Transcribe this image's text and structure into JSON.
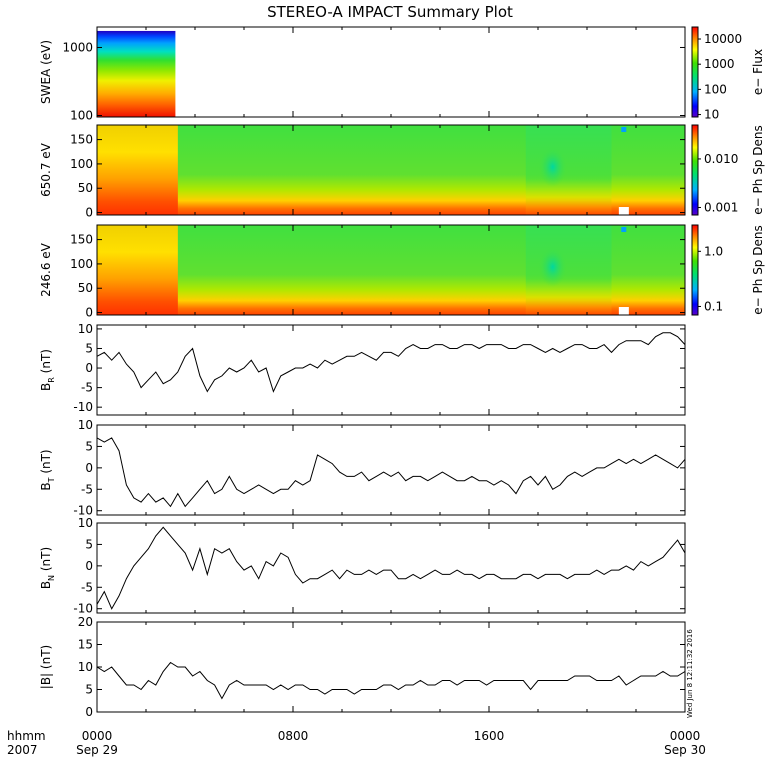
{
  "title": "STEREO-A IMPACT Summary Plot",
  "stamp": "Wed Jun  8 12:11:32 2016",
  "time_axis": {
    "row1_label": "hhmm",
    "row2_label": "2007",
    "ticks": [
      {
        "hour": 0,
        "hhmm": "0000",
        "date": "Sep 29"
      },
      {
        "hour": 8,
        "hhmm": "0800",
        "date": ""
      },
      {
        "hour": 16,
        "hhmm": "1600",
        "date": ""
      },
      {
        "hour": 24,
        "hhmm": "0000",
        "date": "Sep 30"
      }
    ]
  },
  "colors": {
    "line": "#000000",
    "frame": "#000000",
    "background": "#ffffff"
  },
  "chart_data": [
    {
      "type": "heatmap",
      "name": "swea",
      "ylabel": "SWEA (eV)",
      "yscale": "log",
      "ylim": [
        95,
        2000
      ],
      "yticks": [
        100,
        1000
      ],
      "ytick_labels": [
        "100",
        "1000"
      ],
      "data_end_hour": 3.2,
      "colorbar": {
        "label": "e− Flux",
        "scale": "log",
        "range": [
          8,
          30000
        ],
        "ticks": [
          10,
          100,
          1000,
          10000
        ],
        "tick_labels": [
          "10",
          "100",
          "1000",
          "10000"
        ]
      }
    },
    {
      "type": "heatmap",
      "name": "pad-650",
      "ylabel": "650.7 eV",
      "ylim": [
        -5,
        180
      ],
      "yticks": [
        0,
        50,
        100,
        150
      ],
      "colorbar": {
        "label": "e− Ph Sp Dens",
        "scale": "log",
        "range": [
          0.0007,
          0.05
        ],
        "ticks": [
          0.001,
          0.01
        ],
        "tick_labels": [
          "0.001",
          "0.010"
        ]
      }
    },
    {
      "type": "heatmap",
      "name": "pad-246",
      "ylabel": "246.6 eV",
      "ylim": [
        -5,
        180
      ],
      "yticks": [
        0,
        50,
        100,
        150
      ],
      "colorbar": {
        "label": "e− Ph Sp Dens",
        "scale": "log",
        "range": [
          0.07,
          3
        ],
        "ticks": [
          0.1,
          1
        ],
        "tick_labels": [
          "0.1",
          "1.0"
        ]
      }
    },
    {
      "type": "line",
      "name": "br",
      "ylabel_main": "B",
      "ylabel_sub": "R",
      "ylabel_unit": " (nT)",
      "ylim": [
        -12,
        11
      ],
      "yticks": [
        -10,
        -5,
        0,
        5,
        10
      ],
      "x": [
        0,
        0.3,
        0.6,
        0.9,
        1.2,
        1.5,
        1.8,
        2.1,
        2.4,
        2.7,
        3.0,
        3.3,
        3.6,
        3.9,
        4.2,
        4.5,
        4.8,
        5.1,
        5.4,
        5.7,
        6.0,
        6.3,
        6.6,
        6.9,
        7.2,
        7.5,
        7.8,
        8.1,
        8.4,
        8.7,
        9.0,
        9.3,
        9.6,
        9.9,
        10.2,
        10.5,
        10.8,
        11.1,
        11.4,
        11.7,
        12.0,
        12.3,
        12.6,
        12.9,
        13.2,
        13.5,
        13.8,
        14.1,
        14.4,
        14.7,
        15.0,
        15.3,
        15.6,
        15.9,
        16.2,
        16.5,
        16.8,
        17.1,
        17.4,
        17.7,
        18.0,
        18.3,
        18.6,
        18.9,
        19.2,
        19.5,
        19.8,
        20.1,
        20.4,
        20.7,
        21.0,
        21.3,
        21.6,
        21.9,
        22.2,
        22.5,
        22.8,
        23.1,
        23.4,
        23.7,
        24.0
      ],
      "y": [
        3,
        4,
        2,
        4,
        1,
        -1,
        -5,
        -3,
        -1,
        -4,
        -3,
        -1,
        3,
        5,
        -2,
        -6,
        -3,
        -2,
        0,
        -1,
        0,
        2,
        -1,
        0,
        -6,
        -2,
        -1,
        0,
        0,
        1,
        0,
        2,
        1,
        2,
        3,
        3,
        4,
        3,
        2,
        4,
        4,
        3,
        5,
        6,
        5,
        5,
        6,
        6,
        5,
        5,
        6,
        6,
        5,
        6,
        6,
        6,
        5,
        5,
        6,
        6,
        5,
        4,
        5,
        4,
        5,
        6,
        6,
        5,
        5,
        6,
        4,
        6,
        7,
        7,
        7,
        6,
        8,
        9,
        9,
        8,
        6
      ]
    },
    {
      "type": "line",
      "name": "bt",
      "ylabel_main": "B",
      "ylabel_sub": "T",
      "ylabel_unit": " (nT)",
      "ylim": [
        -11,
        10
      ],
      "yticks": [
        -10,
        -5,
        0,
        5,
        10
      ],
      "x": [
        0,
        0.3,
        0.6,
        0.9,
        1.2,
        1.5,
        1.8,
        2.1,
        2.4,
        2.7,
        3.0,
        3.3,
        3.6,
        3.9,
        4.2,
        4.5,
        4.8,
        5.1,
        5.4,
        5.7,
        6.0,
        6.3,
        6.6,
        6.9,
        7.2,
        7.5,
        7.8,
        8.1,
        8.4,
        8.7,
        9.0,
        9.3,
        9.6,
        9.9,
        10.2,
        10.5,
        10.8,
        11.1,
        11.4,
        11.7,
        12.0,
        12.3,
        12.6,
        12.9,
        13.2,
        13.5,
        13.8,
        14.1,
        14.4,
        14.7,
        15.0,
        15.3,
        15.6,
        15.9,
        16.2,
        16.5,
        16.8,
        17.1,
        17.4,
        17.7,
        18.0,
        18.3,
        18.6,
        18.9,
        19.2,
        19.5,
        19.8,
        20.1,
        20.4,
        20.7,
        21.0,
        21.3,
        21.6,
        21.9,
        22.2,
        22.5,
        22.8,
        23.1,
        23.4,
        23.7,
        24.0
      ],
      "y": [
        7,
        6,
        7,
        4,
        -4,
        -7,
        -8,
        -6,
        -8,
        -7,
        -9,
        -6,
        -9,
        -7,
        -5,
        -3,
        -6,
        -5,
        -2,
        -5,
        -6,
        -5,
        -4,
        -5,
        -6,
        -5,
        -5,
        -3,
        -4,
        -3,
        3,
        2,
        1,
        -1,
        -2,
        -2,
        -1,
        -3,
        -2,
        -1,
        -2,
        -1,
        -3,
        -2,
        -2,
        -3,
        -2,
        -1,
        -2,
        -3,
        -3,
        -2,
        -3,
        -3,
        -4,
        -3,
        -4,
        -6,
        -3,
        -2,
        -4,
        -2,
        -5,
        -4,
        -2,
        -1,
        -2,
        -1,
        0,
        0,
        1,
        2,
        1,
        2,
        1,
        2,
        3,
        2,
        1,
        0,
        2
      ]
    },
    {
      "type": "line",
      "name": "bn",
      "ylabel_main": "B",
      "ylabel_sub": "N",
      "ylabel_unit": " (nT)",
      "ylim": [
        -11,
        10
      ],
      "yticks": [
        -10,
        -5,
        0,
        5,
        10
      ],
      "x": [
        0,
        0.3,
        0.6,
        0.9,
        1.2,
        1.5,
        1.8,
        2.1,
        2.4,
        2.7,
        3.0,
        3.3,
        3.6,
        3.9,
        4.2,
        4.5,
        4.8,
        5.1,
        5.4,
        5.7,
        6.0,
        6.3,
        6.6,
        6.9,
        7.2,
        7.5,
        7.8,
        8.1,
        8.4,
        8.7,
        9.0,
        9.3,
        9.6,
        9.9,
        10.2,
        10.5,
        10.8,
        11.1,
        11.4,
        11.7,
        12.0,
        12.3,
        12.6,
        12.9,
        13.2,
        13.5,
        13.8,
        14.1,
        14.4,
        14.7,
        15.0,
        15.3,
        15.6,
        15.9,
        16.2,
        16.5,
        16.8,
        17.1,
        17.4,
        17.7,
        18.0,
        18.3,
        18.6,
        18.9,
        19.2,
        19.5,
        19.8,
        20.1,
        20.4,
        20.7,
        21.0,
        21.3,
        21.6,
        21.9,
        22.2,
        22.5,
        22.8,
        23.1,
        23.4,
        23.7,
        24.0
      ],
      "y": [
        -9,
        -6,
        -10,
        -7,
        -3,
        0,
        2,
        4,
        7,
        9,
        7,
        5,
        3,
        -1,
        4,
        -2,
        4,
        3,
        4,
        1,
        -1,
        0,
        -3,
        1,
        0,
        3,
        2,
        -2,
        -4,
        -3,
        -3,
        -2,
        -1,
        -3,
        -1,
        -2,
        -2,
        -1,
        -2,
        -1,
        -1,
        -3,
        -3,
        -2,
        -3,
        -2,
        -1,
        -2,
        -2,
        -1,
        -2,
        -2,
        -3,
        -2,
        -2,
        -3,
        -3,
        -3,
        -2,
        -2,
        -3,
        -2,
        -2,
        -2,
        -3,
        -2,
        -2,
        -2,
        -1,
        -2,
        -1,
        -1,
        0,
        -1,
        1,
        0,
        1,
        2,
        4,
        6,
        3
      ]
    },
    {
      "type": "line",
      "name": "bmag",
      "ylabel_main": "|B| (nT)",
      "ylim": [
        0,
        20
      ],
      "yticks": [
        0,
        5,
        10,
        15,
        20
      ],
      "x": [
        0,
        0.3,
        0.6,
        0.9,
        1.2,
        1.5,
        1.8,
        2.1,
        2.4,
        2.7,
        3.0,
        3.3,
        3.6,
        3.9,
        4.2,
        4.5,
        4.8,
        5.1,
        5.4,
        5.7,
        6.0,
        6.3,
        6.6,
        6.9,
        7.2,
        7.5,
        7.8,
        8.1,
        8.4,
        8.7,
        9.0,
        9.3,
        9.6,
        9.9,
        10.2,
        10.5,
        10.8,
        11.1,
        11.4,
        11.7,
        12.0,
        12.3,
        12.6,
        12.9,
        13.2,
        13.5,
        13.8,
        14.1,
        14.4,
        14.7,
        15.0,
        15.3,
        15.6,
        15.9,
        16.2,
        16.5,
        16.8,
        17.1,
        17.4,
        17.7,
        18.0,
        18.3,
        18.6,
        18.9,
        19.2,
        19.5,
        19.8,
        20.1,
        20.4,
        20.7,
        21.0,
        21.3,
        21.6,
        21.9,
        22.2,
        22.5,
        22.8,
        23.1,
        23.4,
        23.7,
        24.0
      ],
      "y": [
        10,
        9,
        10,
        8,
        6,
        6,
        5,
        7,
        6,
        9,
        11,
        10,
        10,
        8,
        9,
        7,
        6,
        3,
        6,
        7,
        6,
        6,
        6,
        6,
        5,
        6,
        5,
        6,
        6,
        5,
        5,
        4,
        5,
        5,
        5,
        4,
        5,
        5,
        5,
        6,
        6,
        5,
        6,
        6,
        7,
        6,
        6,
        7,
        7,
        6,
        7,
        7,
        7,
        6,
        7,
        7,
        7,
        7,
        7,
        5,
        7,
        7,
        7,
        7,
        7,
        8,
        8,
        8,
        7,
        7,
        7,
        8,
        6,
        7,
        8,
        8,
        8,
        9,
        8,
        8,
        9
      ]
    }
  ]
}
